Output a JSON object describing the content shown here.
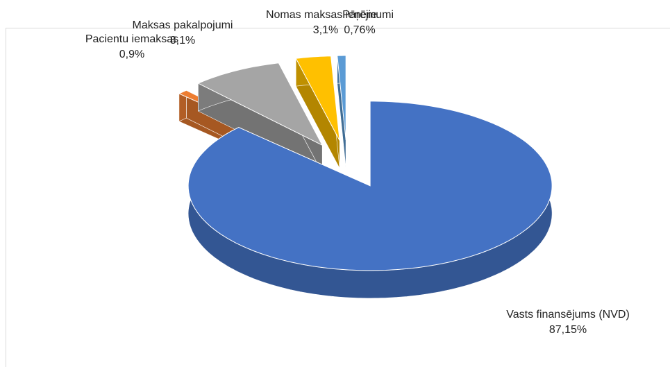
{
  "chart_data": {
    "type": "pie",
    "categories": [
      "Vasts finansējums (NVD)",
      "Pacientu iemaksas",
      "Maksas pakalpojumi",
      "Nomas maksas ieņēmumi",
      "Pārējie"
    ],
    "values": [
      87.15,
      0.9,
      8.1,
      3.1,
      0.76
    ],
    "value_labels": [
      "87,15%",
      "0,9%",
      "8,1%",
      "3,1%",
      "0,76%"
    ],
    "colors": [
      "#4472c4",
      "#ed7d31",
      "#a5a5a5",
      "#ffc000",
      "#5b9bd5"
    ]
  }
}
